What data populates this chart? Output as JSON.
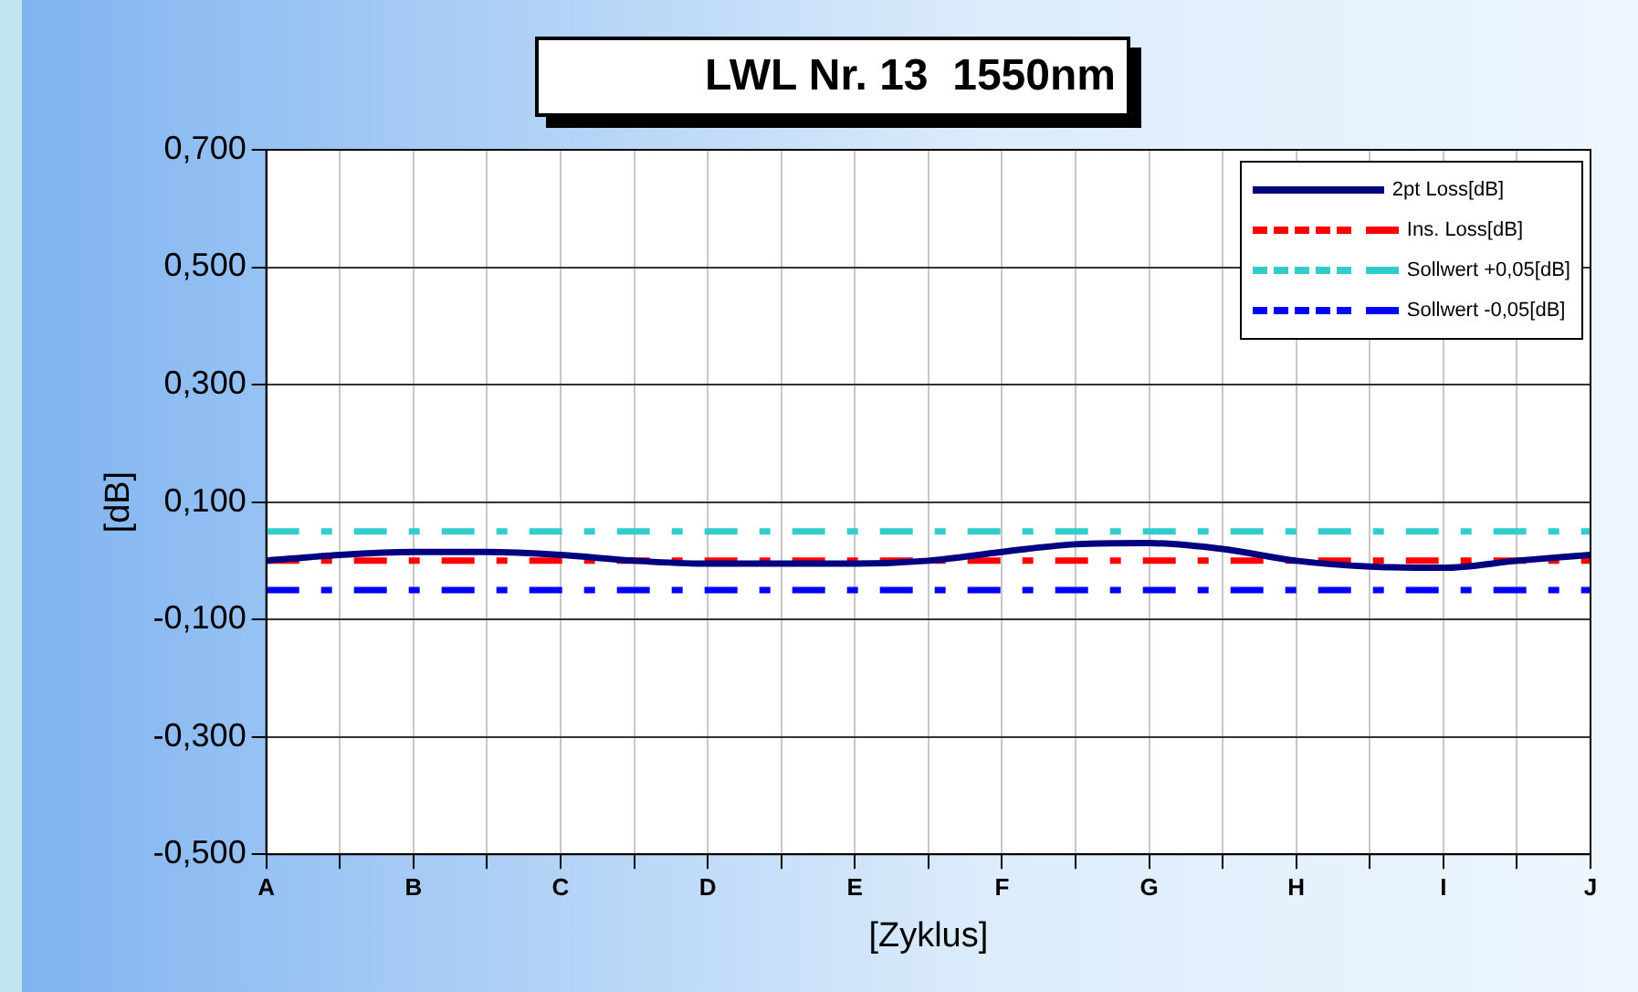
{
  "chart_data": {
    "type": "line",
    "title": "LWL Nr. 13  1550nm",
    "xlabel": "[Zyklus]",
    "ylabel": "[dB]",
    "categories": [
      "A",
      null,
      "B",
      null,
      "C",
      null,
      "D",
      null,
      "E",
      null,
      "F",
      null,
      "G",
      null,
      "H",
      null,
      "I",
      null,
      "J"
    ],
    "series": [
      {
        "name": "2pt Loss[dB]",
        "color": "#000080",
        "line_style": "solid",
        "values": [
          0.0,
          0.01,
          0.015,
          0.015,
          0.01,
          0.0,
          -0.005,
          -0.005,
          -0.005,
          0.0,
          0.015,
          0.028,
          0.03,
          0.02,
          0.0,
          -0.01,
          -0.012,
          0.0,
          0.01
        ]
      },
      {
        "name": "Ins. Loss[dB]",
        "color": "#ff0000",
        "line_style": "dashed",
        "values": [
          0,
          0,
          0,
          0,
          0,
          0,
          0,
          0,
          0,
          0,
          0,
          0,
          0,
          0,
          0,
          0,
          0,
          0,
          0
        ]
      },
      {
        "name": "Sollwert +0,05[dB]",
        "color": "#33cccc",
        "line_style": "dashed",
        "values": [
          0.05,
          0.05,
          0.05,
          0.05,
          0.05,
          0.05,
          0.05,
          0.05,
          0.05,
          0.05,
          0.05,
          0.05,
          0.05,
          0.05,
          0.05,
          0.05,
          0.05,
          0.05,
          0.05
        ]
      },
      {
        "name": "Sollwert -0,05[dB]",
        "color": "#0000ff",
        "line_style": "dashed",
        "values": [
          -0.05,
          -0.05,
          -0.05,
          -0.05,
          -0.05,
          -0.05,
          -0.05,
          -0.05,
          -0.05,
          -0.05,
          -0.05,
          -0.05,
          -0.05,
          -0.05,
          -0.05,
          -0.05,
          -0.05,
          -0.05,
          -0.05
        ]
      }
    ],
    "ylim": [
      -0.5,
      0.7
    ],
    "yticks": [
      {
        "value": -0.5,
        "label": "-0,500"
      },
      {
        "value": -0.3,
        "label": "-0,300"
      },
      {
        "value": -0.1,
        "label": "-0,100"
      },
      {
        "value": 0.1,
        "label": "0,100"
      },
      {
        "value": 0.3,
        "label": "0,300"
      },
      {
        "value": 0.5,
        "label": "0,500"
      },
      {
        "value": 0.7,
        "label": "0,700"
      }
    ],
    "grid": true,
    "legend": "top right",
    "marker": "none"
  }
}
